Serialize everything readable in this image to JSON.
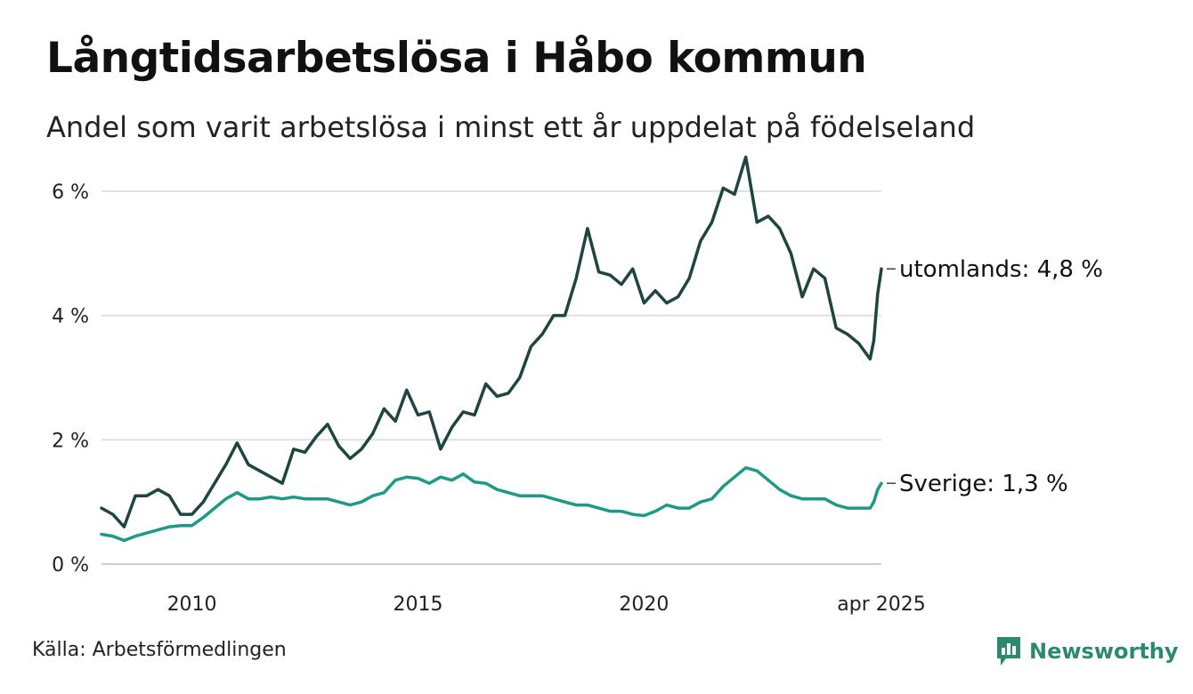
{
  "title": "Långtidsarbetslösa i Håbo kommun",
  "subtitle": "Andel som varit arbetslösa i minst ett år uppdelat på födelseland",
  "source": "Källa: Arbetsförmedlingen",
  "brand": {
    "name": "Newsworthy",
    "icon": "newsworthy-logo-icon",
    "color": "#2b8a6e"
  },
  "chart_data": {
    "type": "line",
    "title": "Långtidsarbetslösa i Håbo kommun",
    "subtitle": "Andel som varit arbetslösa i minst ett år uppdelat på födelseland",
    "xlabel": "",
    "ylabel": "",
    "x_range": [
      "2008-01",
      "2025-04"
    ],
    "ylim": [
      0,
      6.5
    ],
    "y_ticks": [
      0,
      2,
      4,
      6
    ],
    "y_tick_labels": [
      "0 %",
      "2 %",
      "4 %",
      "6 %"
    ],
    "x_ticks": [
      "2010-01",
      "2015-01",
      "2020-01",
      "2025-04"
    ],
    "x_tick_labels": [
      "2010",
      "2015",
      "2020",
      "apr 2025"
    ],
    "grid": true,
    "legend": "end-of-line labels",
    "series": [
      {
        "name": "utomlands",
        "end_label": "utomlands: 4,8 %",
        "color": "#1f4541",
        "points": [
          [
            "2008-01",
            0.9
          ],
          [
            "2008-04",
            0.8
          ],
          [
            "2008-07",
            0.6
          ],
          [
            "2008-10",
            1.1
          ],
          [
            "2009-01",
            1.1
          ],
          [
            "2009-04",
            1.2
          ],
          [
            "2009-07",
            1.1
          ],
          [
            "2009-10",
            0.8
          ],
          [
            "2010-01",
            0.8
          ],
          [
            "2010-04",
            1.0
          ],
          [
            "2010-07",
            1.3
          ],
          [
            "2010-10",
            1.6
          ],
          [
            "2011-01",
            1.95
          ],
          [
            "2011-04",
            1.6
          ],
          [
            "2011-07",
            1.5
          ],
          [
            "2011-10",
            1.4
          ],
          [
            "2012-01",
            1.3
          ],
          [
            "2012-04",
            1.85
          ],
          [
            "2012-07",
            1.8
          ],
          [
            "2012-10",
            2.05
          ],
          [
            "2013-01",
            2.25
          ],
          [
            "2013-04",
            1.9
          ],
          [
            "2013-07",
            1.7
          ],
          [
            "2013-10",
            1.85
          ],
          [
            "2014-01",
            2.1
          ],
          [
            "2014-04",
            2.5
          ],
          [
            "2014-07",
            2.3
          ],
          [
            "2014-10",
            2.8
          ],
          [
            "2015-01",
            2.4
          ],
          [
            "2015-04",
            2.45
          ],
          [
            "2015-07",
            1.85
          ],
          [
            "2015-10",
            2.2
          ],
          [
            "2016-01",
            2.45
          ],
          [
            "2016-04",
            2.4
          ],
          [
            "2016-07",
            2.9
          ],
          [
            "2016-10",
            2.7
          ],
          [
            "2017-01",
            2.75
          ],
          [
            "2017-04",
            3.0
          ],
          [
            "2017-07",
            3.5
          ],
          [
            "2017-10",
            3.7
          ],
          [
            "2018-01",
            4.0
          ],
          [
            "2018-04",
            4.0
          ],
          [
            "2018-07",
            4.6
          ],
          [
            "2018-10",
            5.4
          ],
          [
            "2019-01",
            4.7
          ],
          [
            "2019-04",
            4.65
          ],
          [
            "2019-07",
            4.5
          ],
          [
            "2019-10",
            4.75
          ],
          [
            "2020-01",
            4.2
          ],
          [
            "2020-04",
            4.4
          ],
          [
            "2020-07",
            4.2
          ],
          [
            "2020-10",
            4.3
          ],
          [
            "2021-01",
            4.6
          ],
          [
            "2021-04",
            5.2
          ],
          [
            "2021-07",
            5.5
          ],
          [
            "2021-10",
            6.05
          ],
          [
            "2022-01",
            5.95
          ],
          [
            "2022-04",
            6.55
          ],
          [
            "2022-07",
            5.5
          ],
          [
            "2022-10",
            5.6
          ],
          [
            "2023-01",
            5.4
          ],
          [
            "2023-04",
            5.0
          ],
          [
            "2023-07",
            4.3
          ],
          [
            "2023-10",
            4.75
          ],
          [
            "2024-01",
            4.6
          ],
          [
            "2024-04",
            3.8
          ],
          [
            "2024-07",
            3.7
          ],
          [
            "2024-10",
            3.55
          ],
          [
            "2025-01",
            3.3
          ],
          [
            "2025-02",
            3.6
          ],
          [
            "2025-03",
            4.35
          ],
          [
            "2025-04",
            4.75
          ]
        ]
      },
      {
        "name": "Sverige",
        "end_label": "Sverige: 1,3 %",
        "color": "#1d9a87",
        "points": [
          [
            "2008-01",
            0.48
          ],
          [
            "2008-04",
            0.45
          ],
          [
            "2008-07",
            0.38
          ],
          [
            "2008-10",
            0.45
          ],
          [
            "2009-01",
            0.5
          ],
          [
            "2009-04",
            0.55
          ],
          [
            "2009-07",
            0.6
          ],
          [
            "2009-10",
            0.62
          ],
          [
            "2010-01",
            0.62
          ],
          [
            "2010-04",
            0.75
          ],
          [
            "2010-07",
            0.9
          ],
          [
            "2010-10",
            1.05
          ],
          [
            "2011-01",
            1.15
          ],
          [
            "2011-04",
            1.05
          ],
          [
            "2011-07",
            1.05
          ],
          [
            "2011-10",
            1.08
          ],
          [
            "2012-01",
            1.05
          ],
          [
            "2012-04",
            1.08
          ],
          [
            "2012-07",
            1.05
          ],
          [
            "2012-10",
            1.05
          ],
          [
            "2013-01",
            1.05
          ],
          [
            "2013-04",
            1.0
          ],
          [
            "2013-07",
            0.95
          ],
          [
            "2013-10",
            1.0
          ],
          [
            "2014-01",
            1.1
          ],
          [
            "2014-04",
            1.15
          ],
          [
            "2014-07",
            1.35
          ],
          [
            "2014-10",
            1.4
          ],
          [
            "2015-01",
            1.38
          ],
          [
            "2015-04",
            1.3
          ],
          [
            "2015-07",
            1.4
          ],
          [
            "2015-10",
            1.35
          ],
          [
            "2016-01",
            1.45
          ],
          [
            "2016-04",
            1.32
          ],
          [
            "2016-07",
            1.3
          ],
          [
            "2016-10",
            1.2
          ],
          [
            "2017-01",
            1.15
          ],
          [
            "2017-04",
            1.1
          ],
          [
            "2017-07",
            1.1
          ],
          [
            "2017-10",
            1.1
          ],
          [
            "2018-01",
            1.05
          ],
          [
            "2018-04",
            1.0
          ],
          [
            "2018-07",
            0.95
          ],
          [
            "2018-10",
            0.95
          ],
          [
            "2019-01",
            0.9
          ],
          [
            "2019-04",
            0.85
          ],
          [
            "2019-07",
            0.85
          ],
          [
            "2019-10",
            0.8
          ],
          [
            "2020-01",
            0.78
          ],
          [
            "2020-04",
            0.85
          ],
          [
            "2020-07",
            0.95
          ],
          [
            "2020-10",
            0.9
          ],
          [
            "2021-01",
            0.9
          ],
          [
            "2021-04",
            1.0
          ],
          [
            "2021-07",
            1.05
          ],
          [
            "2021-10",
            1.25
          ],
          [
            "2022-01",
            1.4
          ],
          [
            "2022-04",
            1.55
          ],
          [
            "2022-07",
            1.5
          ],
          [
            "2022-10",
            1.35
          ],
          [
            "2023-01",
            1.2
          ],
          [
            "2023-04",
            1.1
          ],
          [
            "2023-07",
            1.05
          ],
          [
            "2023-10",
            1.05
          ],
          [
            "2024-01",
            1.05
          ],
          [
            "2024-04",
            0.95
          ],
          [
            "2024-07",
            0.9
          ],
          [
            "2024-10",
            0.9
          ],
          [
            "2025-01",
            0.9
          ],
          [
            "2025-02",
            1.0
          ],
          [
            "2025-03",
            1.2
          ],
          [
            "2025-04",
            1.3
          ]
        ]
      }
    ]
  }
}
